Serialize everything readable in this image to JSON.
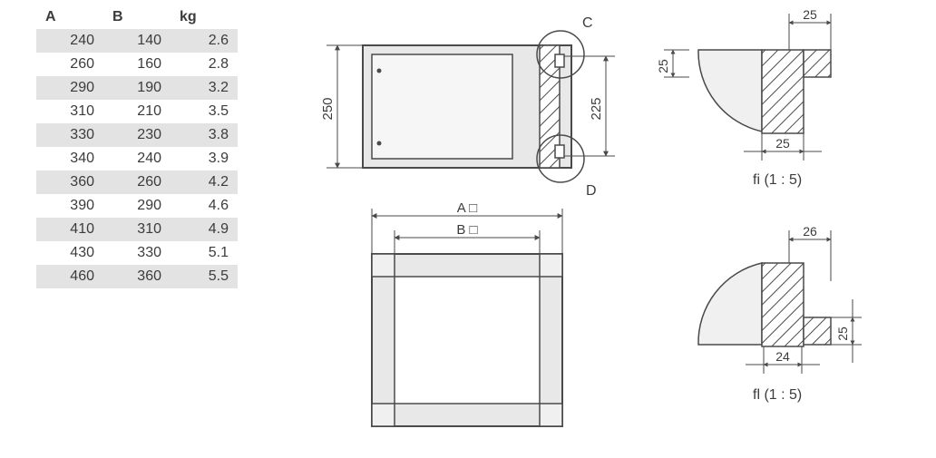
{
  "table": {
    "columns": [
      "A",
      "B",
      "kg"
    ],
    "rows": [
      [
        "240",
        "140",
        "2.6"
      ],
      [
        "260",
        "160",
        "2.8"
      ],
      [
        "290",
        "190",
        "3.2"
      ],
      [
        "310",
        "210",
        "3.5"
      ],
      [
        "330",
        "230",
        "3.8"
      ],
      [
        "340",
        "240",
        "3.9"
      ],
      [
        "360",
        "260",
        "4.2"
      ],
      [
        "390",
        "290",
        "4.6"
      ],
      [
        "410",
        "310",
        "4.9"
      ],
      [
        "430",
        "330",
        "5.1"
      ],
      [
        "460",
        "360",
        "5.5"
      ]
    ]
  },
  "colors": {
    "stroke": "#4a4a4a",
    "fill_box": "#e8e8e8",
    "fill_hatch_bg": "#ffffff",
    "text": "#3c3c3c",
    "row_stripe": "#e3e3e3",
    "background": "#ffffff"
  },
  "diagram": {
    "side_view": {
      "outer_width": 230,
      "outer_height": 135,
      "dim_left_label": "250",
      "dim_right_label": "225",
      "callout_top": "C",
      "callout_bottom": "D"
    },
    "top_view": {
      "dim_outer_label": "A □",
      "dim_inner_label": "B □"
    },
    "detail_c": {
      "label": "fi  (1 : 5)",
      "dim_top": "25",
      "dim_left": "25",
      "dim_bottom": "25"
    },
    "detail_d": {
      "label": "fl  (1 : 5)",
      "dim_top": "26",
      "dim_right": "25",
      "dim_bottom": "24"
    }
  }
}
